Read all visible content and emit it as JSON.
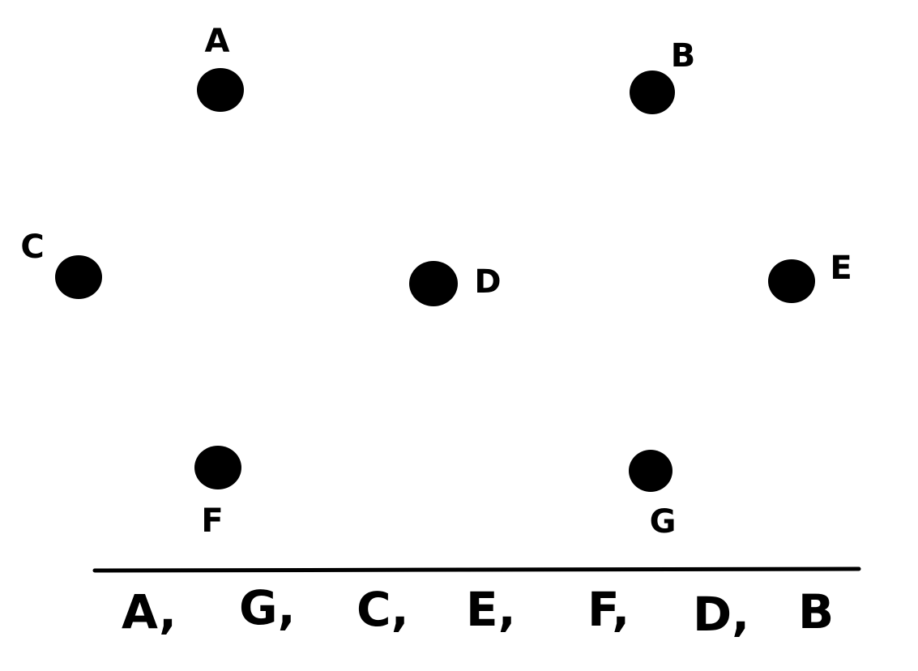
{
  "colors": {
    "ink": "#000000",
    "background": "#ffffff"
  },
  "points": {
    "a": "A",
    "b": "B",
    "c": "C",
    "d": "D",
    "e": "E",
    "f": "F",
    "g": "G"
  },
  "sequence": [
    "A,",
    "G,",
    "C,",
    "E,",
    "F,",
    "D,",
    "B"
  ]
}
